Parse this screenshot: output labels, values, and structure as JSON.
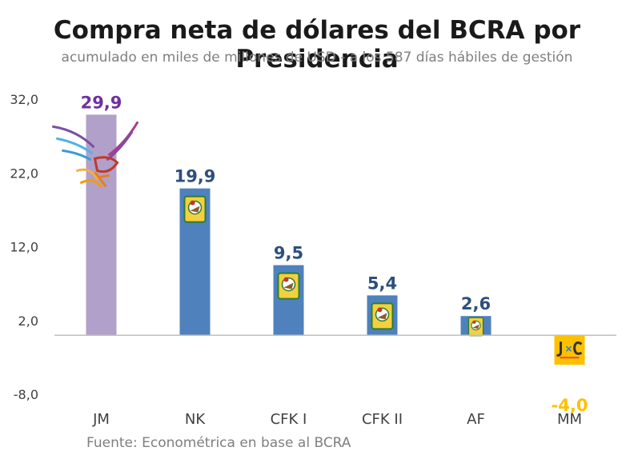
{
  "chart_data": {
    "type": "bar",
    "title": "Compra neta de dólares del BCRA por Presidencia",
    "subtitle": "acumulado en miles de millones de USD - a los 587 días hábiles de gestión",
    "categories": [
      "JM",
      "NK",
      "CFK I",
      "CFK II",
      "AF",
      "MM"
    ],
    "values": [
      29.9,
      19.9,
      9.5,
      5.4,
      2.6,
      -4.0
    ],
    "data_labels": [
      "29,9",
      "19,9",
      "9,5",
      "5,4",
      "2,6",
      "-4,0"
    ],
    "yticks": [
      -8.0,
      2.0,
      12.0,
      22.0,
      32.0
    ],
    "ytick_labels": [
      "-8,0",
      "2,0",
      "12,0",
      "22,0",
      "32,0"
    ],
    "ylim": [
      -8,
      32
    ],
    "xlabel": "",
    "ylabel": "",
    "grid": false,
    "bar_colors": [
      "#b1a0c9",
      "#4f81bd",
      "#4f81bd",
      "#4f81bd",
      "#4f81bd",
      "#ffc000"
    ],
    "label_colors": [
      "#7030a0",
      "#2e4f7c",
      "#2e4f7c",
      "#2e4f7c",
      "#2e4f7c",
      "#ffc000"
    ],
    "icons": [
      "bird-logo-icon",
      "party-shield-icon",
      "party-shield-icon",
      "party-shield-icon",
      "party-shield-icon",
      "jxc-logo-icon"
    ],
    "source": "Fuente: Econométrica en base al BCRA"
  }
}
